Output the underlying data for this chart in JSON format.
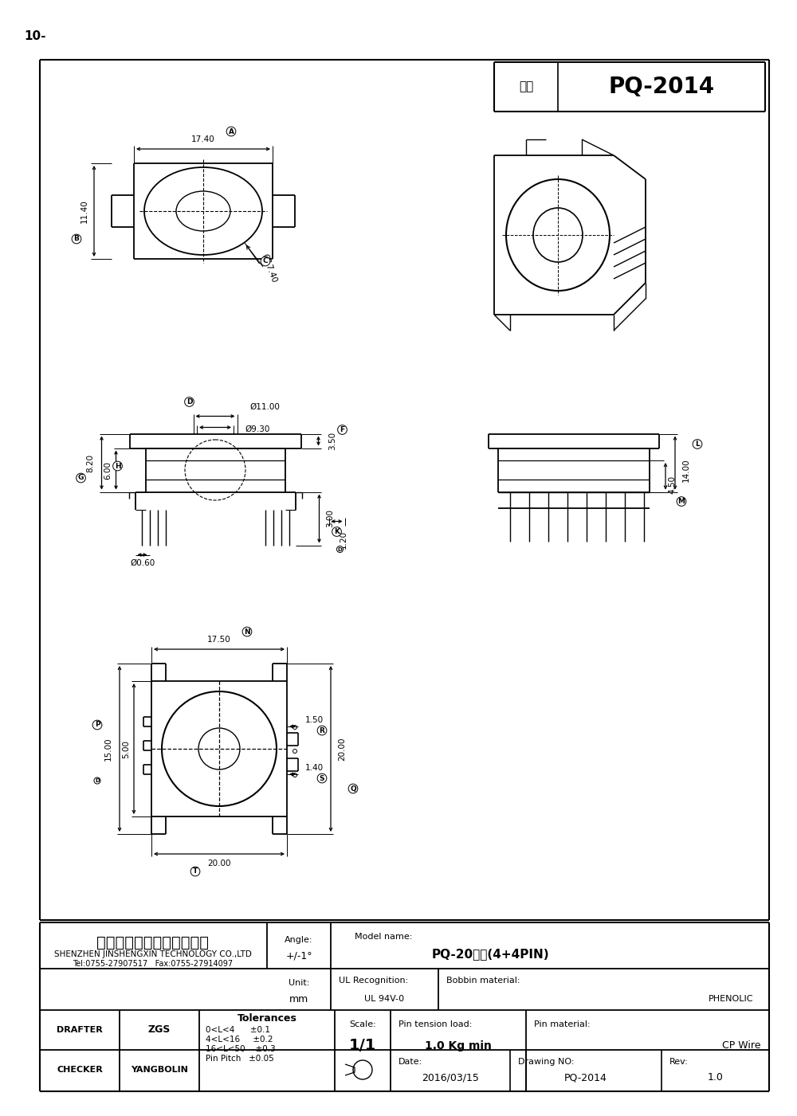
{
  "page_label": "10-",
  "title_type": "型号",
  "title_value": "PQ-2014",
  "company_cn": "深圳市金盛鑫科技有限公司",
  "company_en": "SHENZHEN JINSHENGXIN TECHNOLOGY CO.,LTD",
  "contact": "Tel:0755-27907517   Fax:0755-27914097",
  "model_name": "PQ-20立式(4+4PIN)",
  "ul_recognition": "UL 94V-0",
  "bobbin_material": "PHENOLIC",
  "drafter_name": "ZGS",
  "checker_name": "YANGBOLIN",
  "tol1": "0<L<4      ±0.1",
  "tol2": "4<L<16     ±0.2",
  "tol3": "16<L<50    ±0.3",
  "tol4": "Pin Pitch   ±0.05",
  "date_value": "2016/03/15",
  "drawing_no_value": "PQ-2014",
  "rev_value": "1.0",
  "bg_color": "#ffffff",
  "lc": "#000000"
}
